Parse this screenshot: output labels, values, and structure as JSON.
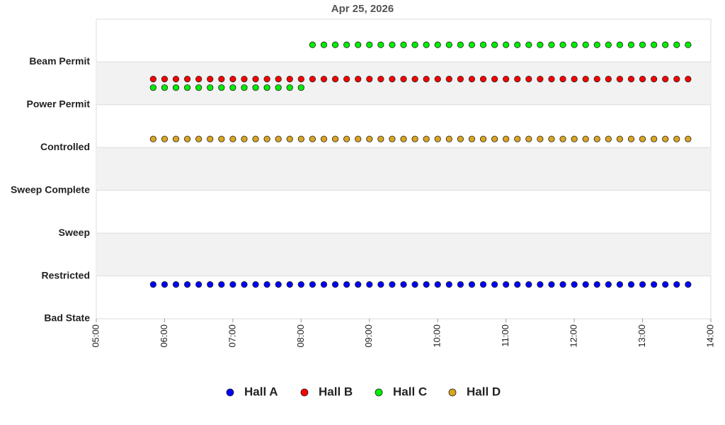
{
  "chart_data": {
    "type": "scatter",
    "title": "Apr 25, 2026",
    "x": [
      "05:50",
      "06:00",
      "06:10",
      "06:20",
      "06:30",
      "06:40",
      "06:50",
      "07:00",
      "07:10",
      "07:20",
      "07:30",
      "07:40",
      "07:50",
      "08:00",
      "08:10",
      "08:20",
      "08:30",
      "08:40",
      "08:50",
      "09:00",
      "09:10",
      "09:20",
      "09:30",
      "09:40",
      "09:50",
      "10:00",
      "10:10",
      "10:20",
      "10:30",
      "10:40",
      "10:50",
      "11:00",
      "11:10",
      "11:20",
      "11:30",
      "11:40",
      "11:50",
      "12:00",
      "12:10",
      "12:20",
      "12:30",
      "12:40",
      "12:50",
      "13:00",
      "13:10",
      "13:20",
      "13:30",
      "13:40"
    ],
    "xlim": [
      "05:00",
      "14:00"
    ],
    "xticks": [
      "05:00",
      "06:00",
      "07:00",
      "08:00",
      "09:00",
      "10:00",
      "11:00",
      "12:00",
      "13:00",
      "14:00"
    ],
    "ylim": [
      0,
      7
    ],
    "yticks": [
      {
        "value": 0,
        "label": "Bad State"
      },
      {
        "value": 1,
        "label": "Restricted"
      },
      {
        "value": 2,
        "label": "Sweep"
      },
      {
        "value": 3,
        "label": "Sweep Complete"
      },
      {
        "value": 4,
        "label": "Controlled"
      },
      {
        "value": 5,
        "label": "Power Permit"
      },
      {
        "value": 6,
        "label": "Beam Permit"
      }
    ],
    "grid": true,
    "legend": "bottom",
    "series": [
      {
        "name": "Hall A",
        "color": "#0000ff",
        "values": [
          0.8,
          0.8,
          0.8,
          0.8,
          0.8,
          0.8,
          0.8,
          0.8,
          0.8,
          0.8,
          0.8,
          0.8,
          0.8,
          0.8,
          0.8,
          0.8,
          0.8,
          0.8,
          0.8,
          0.8,
          0.8,
          0.8,
          0.8,
          0.8,
          0.8,
          0.8,
          0.8,
          0.8,
          0.8,
          0.8,
          0.8,
          0.8,
          0.8,
          0.8,
          0.8,
          0.8,
          0.8,
          0.8,
          0.8,
          0.8,
          0.8,
          0.8,
          0.8,
          0.8,
          0.8,
          0.8,
          0.8,
          0.8
        ]
      },
      {
        "name": "Hall B",
        "color": "#ff0000",
        "values": [
          5.6,
          5.6,
          5.6,
          5.6,
          5.6,
          5.6,
          5.6,
          5.6,
          5.6,
          5.6,
          5.6,
          5.6,
          5.6,
          5.6,
          5.6,
          5.6,
          5.6,
          5.6,
          5.6,
          5.6,
          5.6,
          5.6,
          5.6,
          5.6,
          5.6,
          5.6,
          5.6,
          5.6,
          5.6,
          5.6,
          5.6,
          5.6,
          5.6,
          5.6,
          5.6,
          5.6,
          5.6,
          5.6,
          5.6,
          5.6,
          5.6,
          5.6,
          5.6,
          5.6,
          5.6,
          5.6,
          5.6,
          5.6
        ]
      },
      {
        "name": "Hall C",
        "color": "#00ee00",
        "values": [
          5.4,
          5.4,
          5.4,
          5.4,
          5.4,
          5.4,
          5.4,
          5.4,
          5.4,
          5.4,
          5.4,
          5.4,
          5.4,
          5.4,
          6.4,
          6.4,
          6.4,
          6.4,
          6.4,
          6.4,
          6.4,
          6.4,
          6.4,
          6.4,
          6.4,
          6.4,
          6.4,
          6.4,
          6.4,
          6.4,
          6.4,
          6.4,
          6.4,
          6.4,
          6.4,
          6.4,
          6.4,
          6.4,
          6.4,
          6.4,
          6.4,
          6.4,
          6.4,
          6.4,
          6.4,
          6.4,
          6.4,
          6.4
        ]
      },
      {
        "name": "Hall D",
        "color": "#daa520",
        "values": [
          4.2,
          4.2,
          4.2,
          4.2,
          4.2,
          4.2,
          4.2,
          4.2,
          4.2,
          4.2,
          4.2,
          4.2,
          4.2,
          4.2,
          4.2,
          4.2,
          4.2,
          4.2,
          4.2,
          4.2,
          4.2,
          4.2,
          4.2,
          4.2,
          4.2,
          4.2,
          4.2,
          4.2,
          4.2,
          4.2,
          4.2,
          4.2,
          4.2,
          4.2,
          4.2,
          4.2,
          4.2,
          4.2,
          4.2,
          4.2,
          4.2,
          4.2,
          4.2,
          4.2,
          4.2,
          4.2,
          4.2,
          4.2
        ]
      }
    ]
  }
}
